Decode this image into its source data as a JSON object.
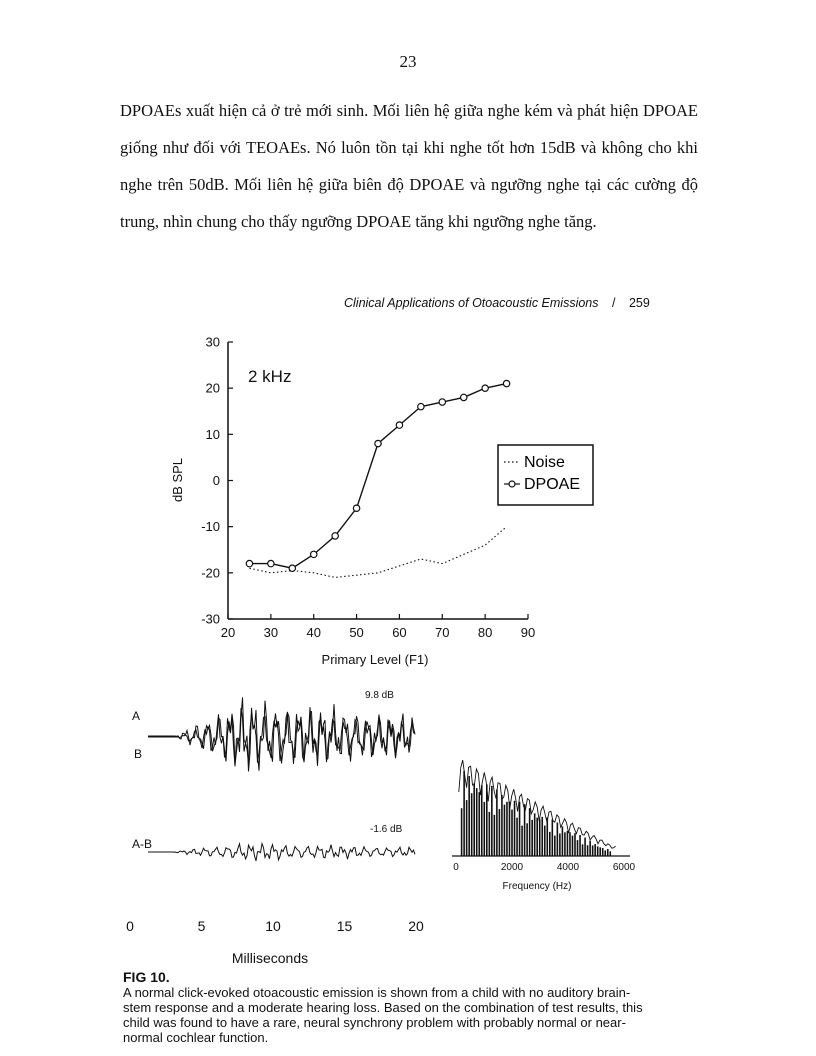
{
  "page": {
    "number": "23",
    "paragraph": "DPOAEs xuất hiện cả ở trẻ mới sinh. Mối liên hệ giữa nghe kém và phát hiện DPOAE giống như đối với TEOAEs. Nó luôn tồn tại khi nghe tốt hơn 15dB và không cho khi nghe trên 50dB. Mối liên hệ giữa biên độ DPOAE và ngưỡng nghe tại các cường độ trung, nhìn chung cho thấy ngưỡng DPOAE tăng khi ngưỡng nghe tăng.",
    "running_header": "Clinical Applications of Otoacoustic Emissions",
    "running_header_page": "259"
  },
  "chart_data": [
    {
      "type": "line",
      "annotation": "2 kHz",
      "xlabel": "Primary Level (F1)",
      "ylabel": "dB SPL",
      "xlim": [
        20,
        90
      ],
      "ylim": [
        -30,
        30
      ],
      "x_ticks": [
        20,
        30,
        40,
        50,
        60,
        70,
        80,
        90
      ],
      "y_ticks": [
        30,
        20,
        10,
        0,
        -10,
        -20,
        -30
      ],
      "legend_position": "right",
      "series": [
        {
          "name": "Noise",
          "style": "dotted",
          "x": [
            25,
            30,
            35,
            40,
            45,
            50,
            55,
            60,
            65,
            70,
            75,
            80,
            85
          ],
          "y": [
            -19,
            -20,
            -19.5,
            -20,
            -21,
            -20.5,
            -20,
            -18.5,
            -17,
            -18,
            -16,
            -14,
            -10
          ]
        },
        {
          "name": "DPOAE",
          "style": "solid-open-circles",
          "x": [
            25,
            30,
            35,
            40,
            45,
            50,
            55,
            60,
            65,
            70,
            75,
            80,
            85
          ],
          "y": [
            -18,
            -18,
            -19,
            -16,
            -12,
            -6,
            8,
            12,
            16,
            17,
            18,
            20,
            21
          ]
        }
      ]
    },
    {
      "type": "line",
      "xlabel": "Milliseconds",
      "xlim": [
        0,
        20
      ],
      "x_ticks": [
        0,
        5,
        10,
        15,
        20
      ],
      "traces": [
        {
          "labels": [
            "A",
            "B"
          ],
          "value_label": "9.8 dB"
        },
        {
          "labels": [
            "A-B"
          ],
          "value_label": "-1.6 dB"
        }
      ]
    },
    {
      "type": "bar",
      "xlabel": "Frequency (Hz)",
      "xlim": [
        0,
        6000
      ],
      "x_ticks": [
        0,
        2000,
        4000,
        6000
      ]
    }
  ],
  "caption": {
    "title": "FIG 10.",
    "text": "A normal click-evoked otoacoustic emission is shown from a child with no auditory brain-stem response and a moderate hearing loss. Based on the combination of test results, this child was found to have a rare, neural synchrony problem with probably normal or near-normal cochlear function."
  }
}
